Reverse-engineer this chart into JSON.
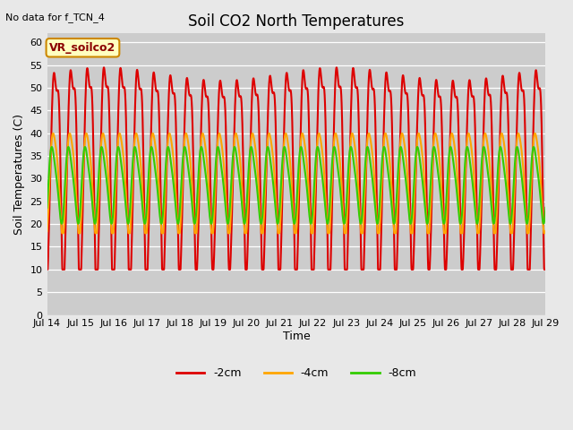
{
  "title": "Soil CO2 North Temperatures",
  "no_data_text": "No data for f_TCN_4",
  "ylabel": "Soil Temperatures (C)",
  "xlabel": "Time",
  "annotation_box": "VR_soilco2",
  "ylim": [
    0,
    62
  ],
  "yticks": [
    0,
    5,
    10,
    15,
    20,
    25,
    30,
    35,
    40,
    45,
    50,
    55,
    60
  ],
  "bg_color": "#e8e8e8",
  "plot_bg_color": "#cccccc",
  "color_2cm": "#dd0000",
  "color_4cm": "#ffa500",
  "color_8cm": "#33cc00",
  "linewidth": 1.5,
  "x_tick_labels": [
    "Jul 14",
    "Jul 15",
    "Jul 16",
    "Jul 17",
    "Jul 18",
    "Jul 19",
    "Jul 20",
    "Jul 21",
    "Jul 22",
    "Jul 23",
    "Jul 24",
    "Jul 25",
    "Jul 26",
    "Jul 27",
    "Jul 28",
    "Jul 29"
  ],
  "legend_entries": [
    "-2cm",
    "-4cm",
    "-8cm"
  ],
  "legend_colors": [
    "#dd0000",
    "#ffa500",
    "#33cc00"
  ],
  "figsize": [
    6.4,
    4.8
  ],
  "dpi": 100
}
